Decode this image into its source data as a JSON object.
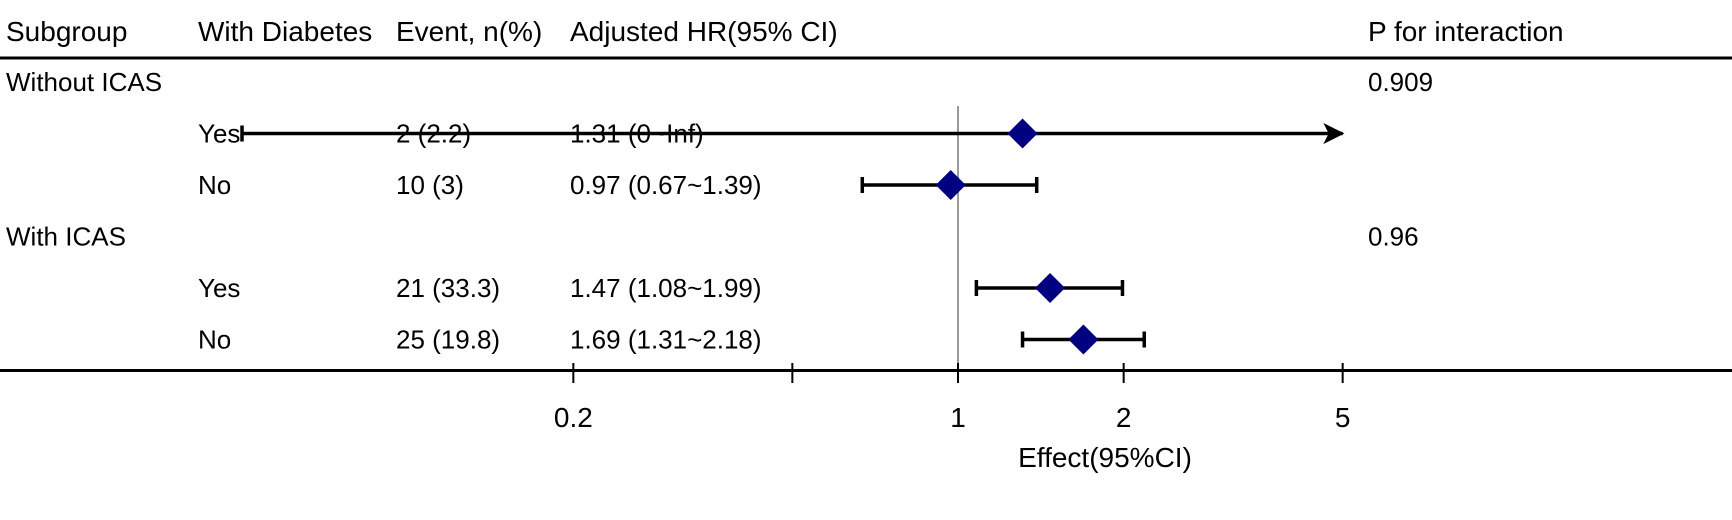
{
  "chart_data": {
    "type": "forest",
    "columns": [
      "Subgroup",
      "With Diabetes",
      "Event, n(%)",
      "Adjusted HR(95% CI)",
      "P for interaction"
    ],
    "groups": [
      {
        "label": "Without ICAS",
        "p_interaction": "0.909",
        "rows": [
          {
            "diabetes": "Yes",
            "event": "2 (2.2)",
            "hr_text": "1.31 (0~Inf)",
            "hr": 1.31,
            "lower": 0.05,
            "upper": 5,
            "upper_arrow": true
          },
          {
            "diabetes": "No",
            "event": "10 (3)",
            "hr_text": "0.97 (0.67~1.39)",
            "hr": 0.97,
            "lower": 0.67,
            "upper": 1.39,
            "upper_arrow": false
          }
        ]
      },
      {
        "label": "With ICAS",
        "p_interaction": "0.96",
        "rows": [
          {
            "diabetes": "Yes",
            "event": "21 (33.3)",
            "hr_text": "1.47 (1.08~1.99)",
            "hr": 1.47,
            "lower": 1.08,
            "upper": 1.99,
            "upper_arrow": false
          },
          {
            "diabetes": "No",
            "event": "25 (19.8)",
            "hr_text": "1.69 (1.31~2.18)",
            "hr": 1.69,
            "lower": 1.31,
            "upper": 2.18,
            "upper_arrow": false
          }
        ]
      }
    ],
    "reference_line": 1,
    "x_ticks": [
      {
        "value": 0.2,
        "label": "0.2"
      },
      {
        "value": 0.5,
        "label": ""
      },
      {
        "value": 1,
        "label": "1"
      },
      {
        "value": 2,
        "label": "2"
      },
      {
        "value": 5,
        "label": "5"
      }
    ],
    "xlabel": "Effect(95%CI)",
    "xlim": [
      0.05,
      5
    ],
    "colors": {
      "marker": "#000080",
      "line": "#000000",
      "reference": "#9a9a9a"
    }
  }
}
